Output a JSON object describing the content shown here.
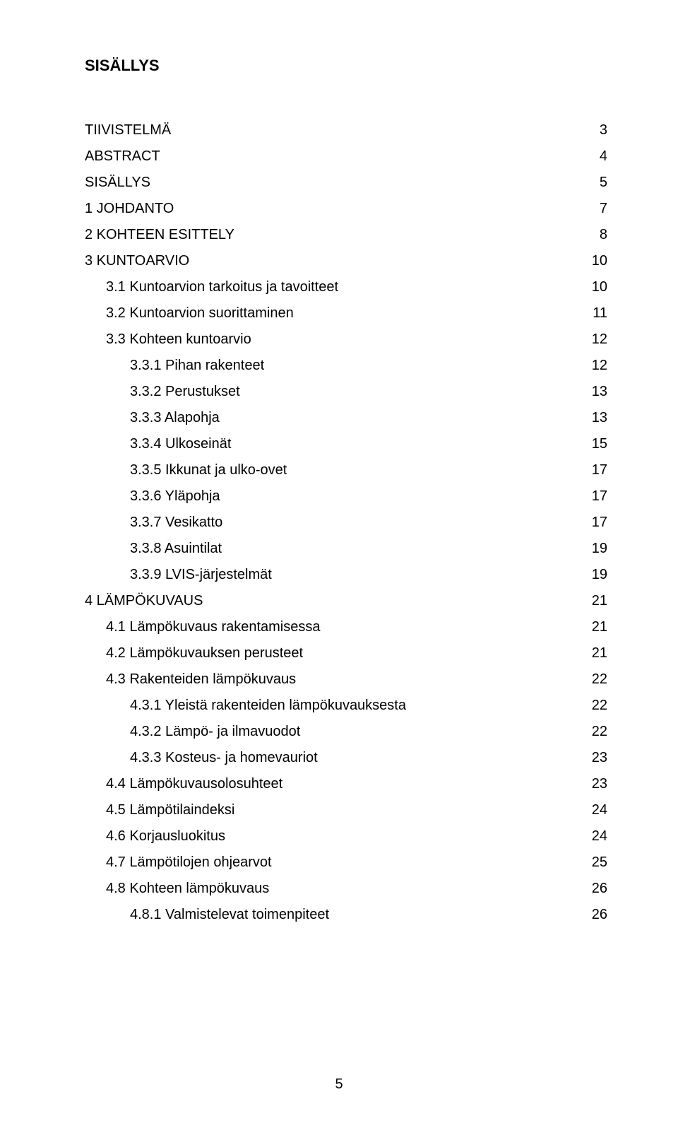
{
  "heading": "SISÄLLYS",
  "footer_page": "5",
  "text_color": "#000000",
  "background_color": "#ffffff",
  "font_family": "Arial",
  "title_fontsize": 22,
  "body_fontsize": 20,
  "line_height": 1.85,
  "entries": [
    {
      "label": "TIIVISTELMÄ",
      "page": "3",
      "indent": 0
    },
    {
      "label": "ABSTRACT",
      "page": "4",
      "indent": 0
    },
    {
      "label": "SISÄLLYS",
      "page": "5",
      "indent": 0
    },
    {
      "label": "1 JOHDANTO",
      "page": "7",
      "indent": 0
    },
    {
      "label": "2 KOHTEEN ESITTELY",
      "page": "8",
      "indent": 0
    },
    {
      "label": "3 KUNTOARVIO",
      "page": "10",
      "indent": 0
    },
    {
      "label": "3.1 Kuntoarvion tarkoitus ja tavoitteet",
      "page": "10",
      "indent": 1
    },
    {
      "label": "3.2 Kuntoarvion suorittaminen",
      "page": "11",
      "indent": 1
    },
    {
      "label": "3.3 Kohteen kuntoarvio",
      "page": "12",
      "indent": 1
    },
    {
      "label": "3.3.1 Pihan rakenteet",
      "page": "12",
      "indent": 2
    },
    {
      "label": "3.3.2 Perustukset",
      "page": "13",
      "indent": 2
    },
    {
      "label": "3.3.3 Alapohja",
      "page": "13",
      "indent": 2
    },
    {
      "label": "3.3.4 Ulkoseinät",
      "page": "15",
      "indent": 2
    },
    {
      "label": "3.3.5 Ikkunat ja ulko-ovet",
      "page": "17",
      "indent": 2
    },
    {
      "label": "3.3.6 Yläpohja",
      "page": "17",
      "indent": 2
    },
    {
      "label": "3.3.7 Vesikatto",
      "page": "17",
      "indent": 2
    },
    {
      "label": "3.3.8 Asuintilat",
      "page": "19",
      "indent": 2
    },
    {
      "label": "3.3.9 LVIS-järjestelmät",
      "page": "19",
      "indent": 2
    },
    {
      "label": "4 LÄMPÖKUVAUS",
      "page": "21",
      "indent": 0
    },
    {
      "label": "4.1 Lämpökuvaus rakentamisessa",
      "page": "21",
      "indent": 1
    },
    {
      "label": "4.2 Lämpökuvauksen perusteet",
      "page": "21",
      "indent": 1
    },
    {
      "label": "4.3 Rakenteiden lämpökuvaus",
      "page": "22",
      "indent": 1
    },
    {
      "label": "4.3.1 Yleistä rakenteiden lämpökuvauksesta",
      "page": "22",
      "indent": 2
    },
    {
      "label": "4.3.2 Lämpö- ja ilmavuodot",
      "page": "22",
      "indent": 2
    },
    {
      "label": "4.3.3 Kosteus- ja homevauriot",
      "page": "23",
      "indent": 2
    },
    {
      "label": "4.4 Lämpökuvausolosuhteet",
      "page": "23",
      "indent": 1
    },
    {
      "label": "4.5 Lämpötilaindeksi",
      "page": "24",
      "indent": 1
    },
    {
      "label": "4.6 Korjausluokitus",
      "page": "24",
      "indent": 1
    },
    {
      "label": "4.7 Lämpötilojen ohjearvot",
      "page": "25",
      "indent": 1
    },
    {
      "label": "4.8 Kohteen lämpökuvaus",
      "page": "26",
      "indent": 1
    },
    {
      "label": "4.8.1 Valmistelevat toimenpiteet",
      "page": "26",
      "indent": 2
    }
  ]
}
